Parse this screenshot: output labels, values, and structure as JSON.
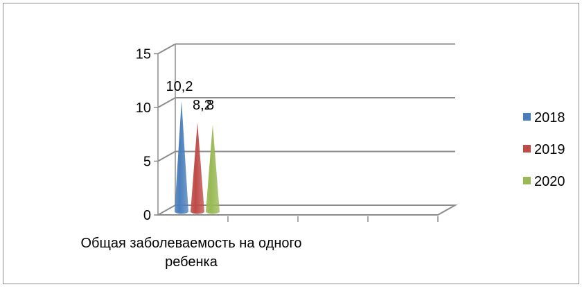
{
  "chart_data": {
    "type": "bar",
    "style": "3d-cone",
    "categories": [
      "Общая заболеваемость на одного ребенка"
    ],
    "category_label_lines": [
      "Общая заболеваемость на одного",
      "ребенка"
    ],
    "series": [
      {
        "name": "2018",
        "values": [
          10.2
        ],
        "label": "10,2",
        "color": "#4a7ebb"
      },
      {
        "name": "2019",
        "values": [
          8.2
        ],
        "label": "8,2",
        "color": "#be4b48"
      },
      {
        "name": "2020",
        "values": [
          8
        ],
        "label": "8",
        "color": "#98b954"
      }
    ],
    "yticks": [
      "0",
      "5",
      "10",
      "15"
    ],
    "ylim": [
      0,
      15
    ],
    "grid": true,
    "legend": "right"
  }
}
